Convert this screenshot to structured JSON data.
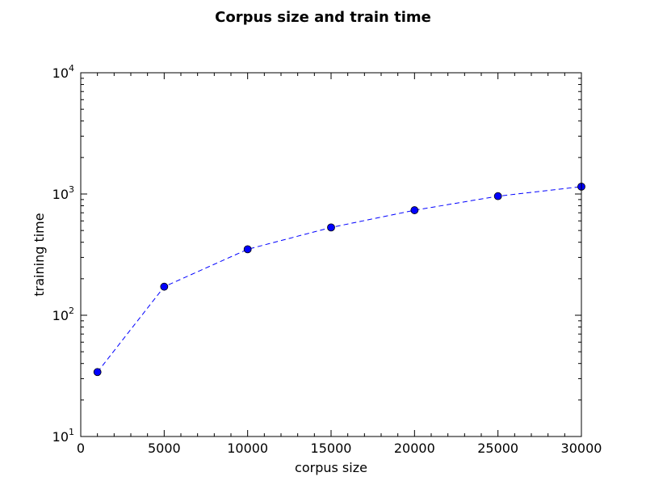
{
  "chart_data": {
    "type": "line",
    "title": "Corpus size and train time",
    "xlabel": "corpus size",
    "ylabel": "training time",
    "xlim": [
      0,
      30000
    ],
    "ylim": [
      10,
      10000
    ],
    "y_scale": "log",
    "grid": false,
    "legend": "none",
    "x_ticks": [
      "0",
      "5000",
      "10000",
      "15000",
      "20000",
      "25000",
      "30000"
    ],
    "y_ticks": [
      {
        "base": "10",
        "exp": "1"
      },
      {
        "base": "10",
        "exp": "2"
      },
      {
        "base": "10",
        "exp": "3"
      },
      {
        "base": "10",
        "exp": "4"
      }
    ],
    "series": [
      {
        "x": [
          1000,
          5000,
          10000,
          15000,
          20000,
          25000,
          30000
        ],
        "values": [
          34,
          172,
          350,
          530,
          735,
          960,
          1150
        ],
        "color": "#0000ff",
        "line_style": "dashed",
        "marker": "circle"
      }
    ]
  }
}
